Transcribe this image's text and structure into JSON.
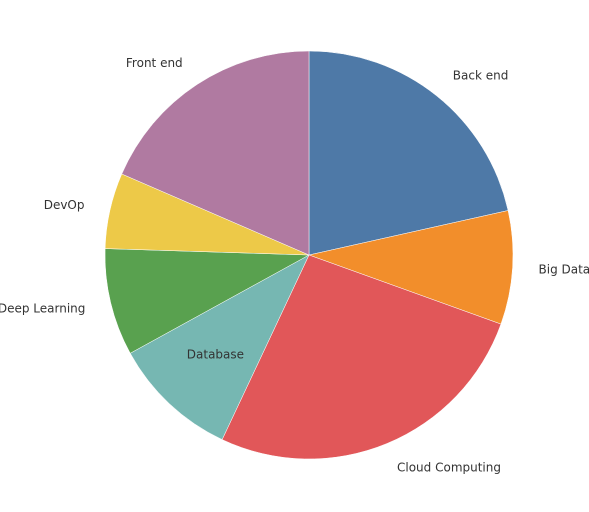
{
  "chart_data": {
    "type": "pie",
    "start_angle_deg": 0,
    "direction": "clockwise",
    "slices": [
      {
        "label": "Back end",
        "value": 21.5,
        "color": "#4e79a7"
      },
      {
        "label": "Big Data",
        "value": 9.0,
        "color": "#f28e2b"
      },
      {
        "label": "Cloud Computing",
        "value": 26.5,
        "color": "#e15759"
      },
      {
        "label": "Database",
        "value": 10.0,
        "color": "#76b7b2"
      },
      {
        "label": "Deep Learning",
        "value": 8.5,
        "color": "#59a14f"
      },
      {
        "label": "DevOp",
        "value": 6.0,
        "color": "#edc948"
      },
      {
        "label": "Front end",
        "value": 18.5,
        "color": "#b07aa1"
      }
    ]
  }
}
